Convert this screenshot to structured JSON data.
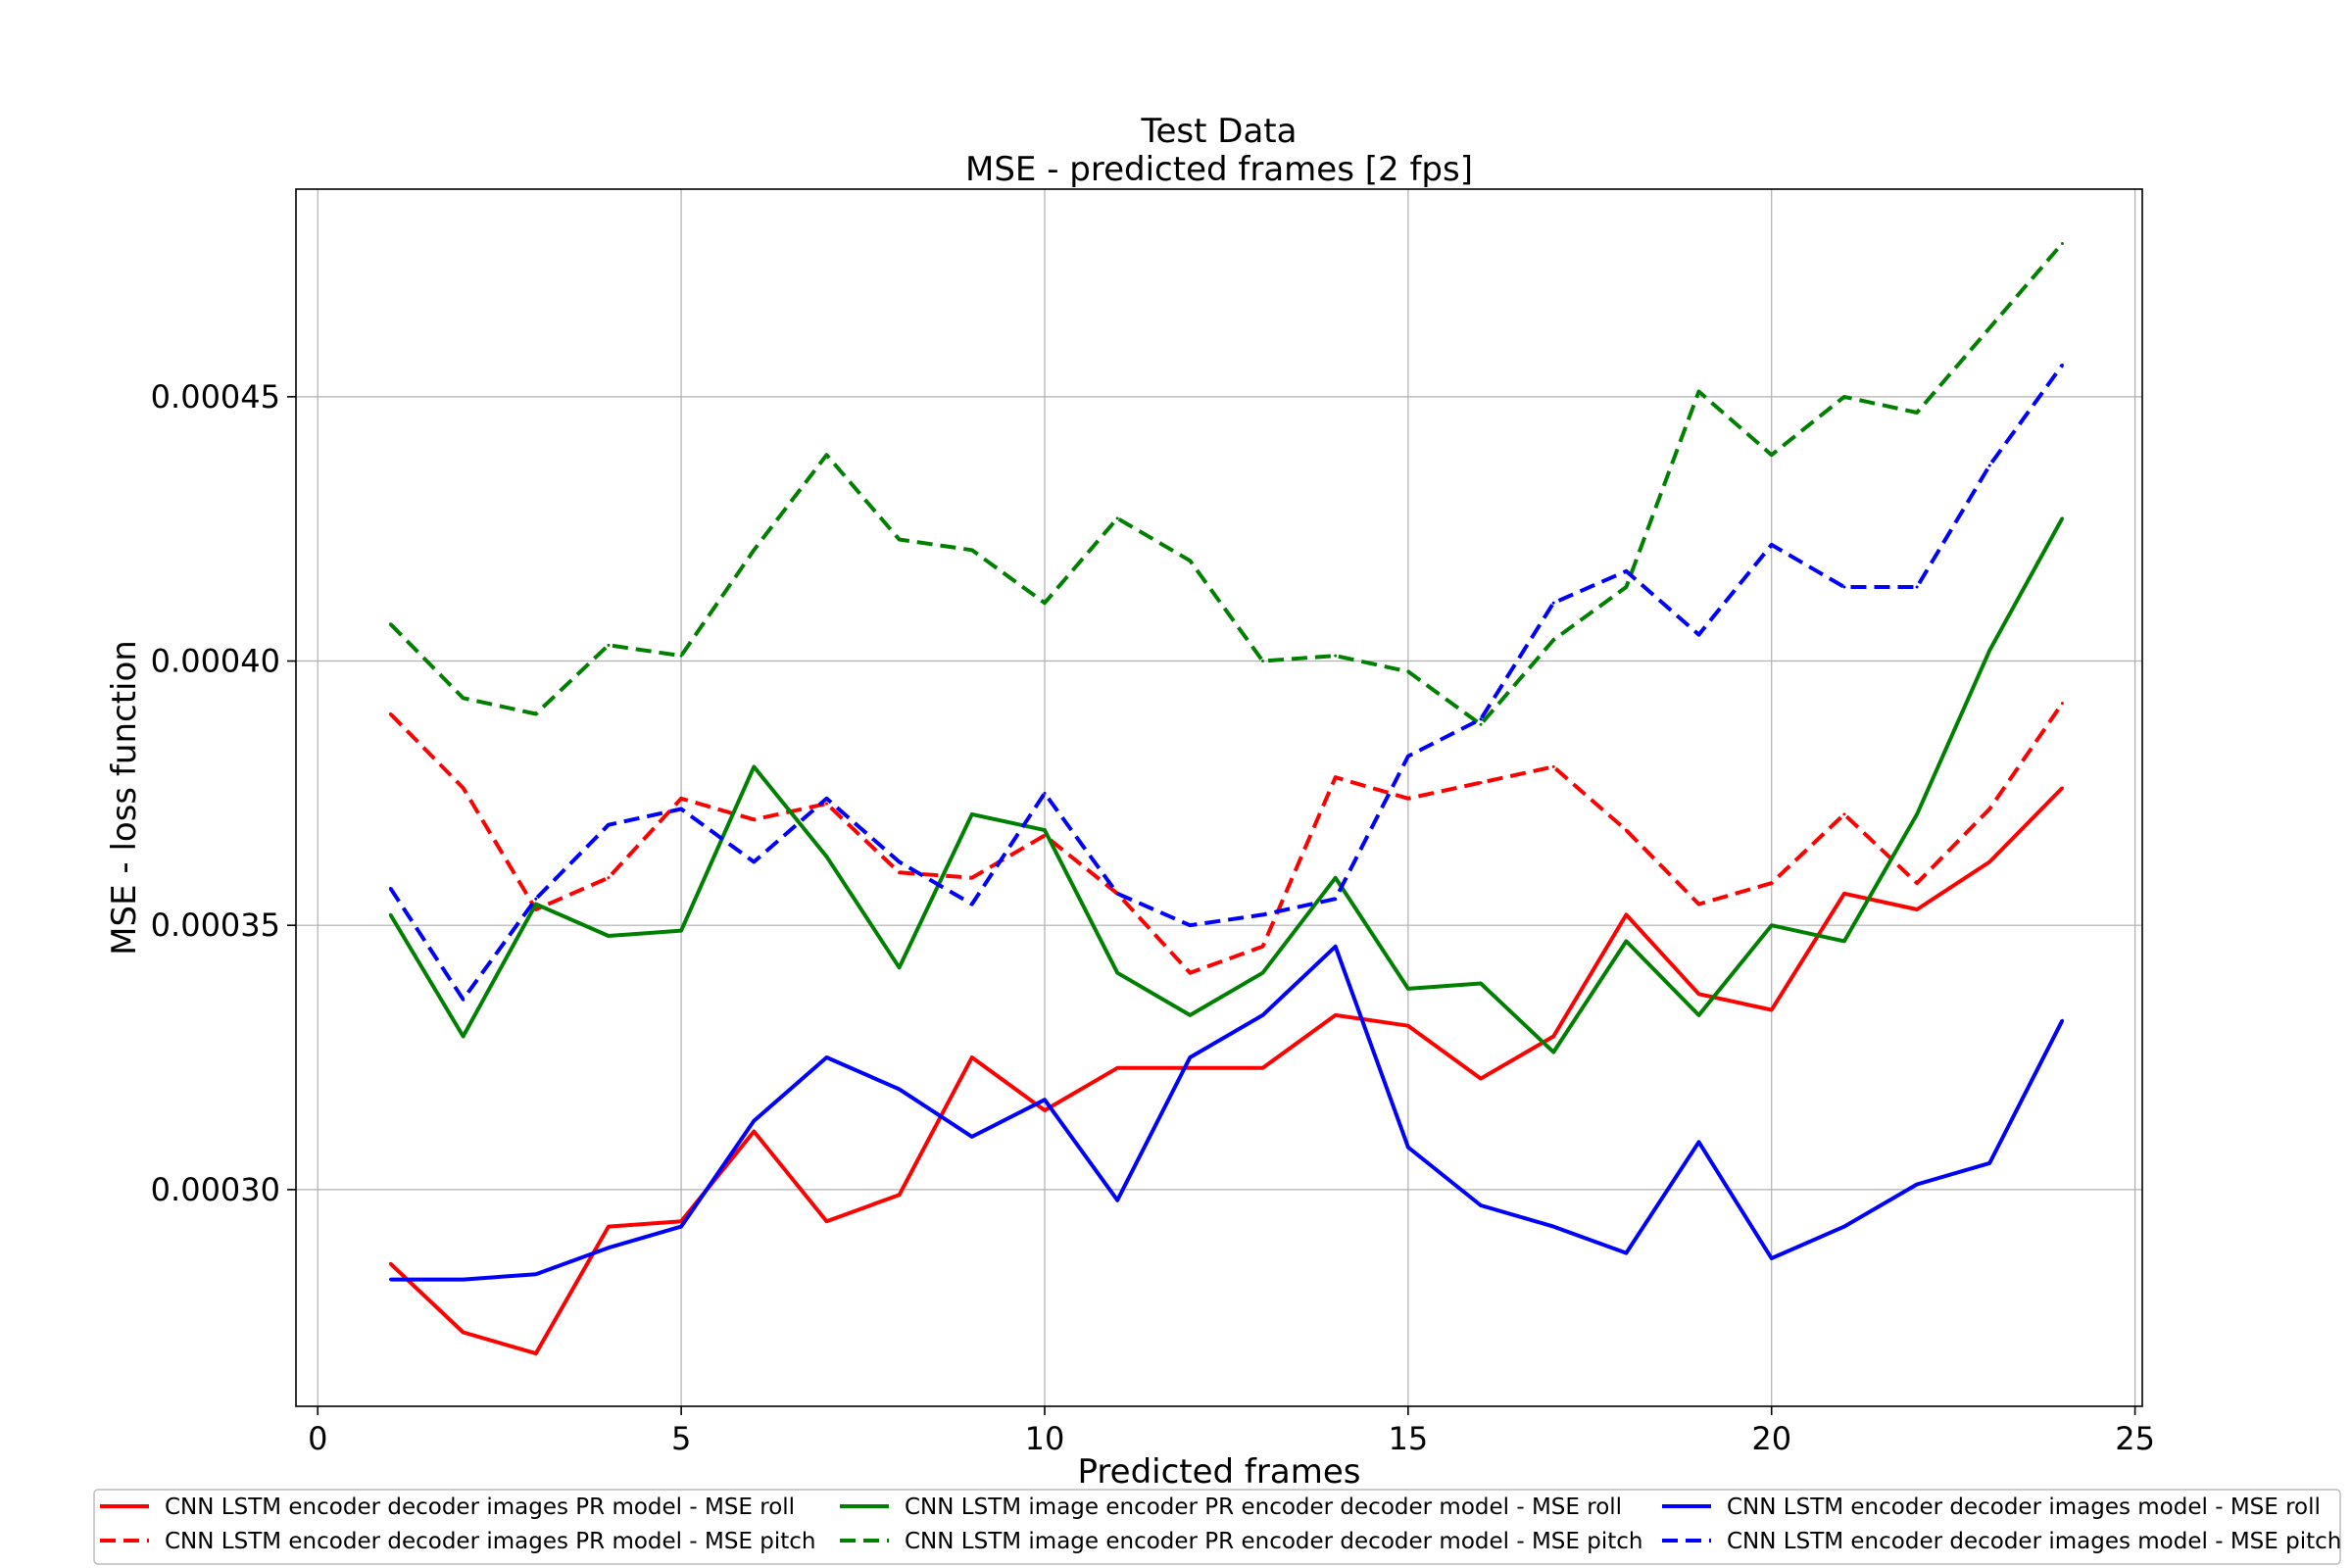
{
  "chart_data": {
    "type": "line",
    "title_lines": [
      "Test Data",
      "MSE - predicted frames [2 fps]"
    ],
    "xlabel": "Predicted frames",
    "ylabel": "MSE - loss function",
    "xlim": [
      -0.3,
      25.1
    ],
    "ylim": [
      0.000259,
      0.00048928
    ],
    "xticks": [
      0,
      5,
      10,
      15,
      20,
      25
    ],
    "xtick_labels": [
      "0",
      "5",
      "10",
      "15",
      "20",
      "25"
    ],
    "yticks": [
      0.0003,
      0.00035,
      0.0004,
      0.00045
    ],
    "ytick_labels": [
      "0.00030",
      "0.00035",
      "0.00040",
      "0.00045"
    ],
    "grid": true,
    "legend_position": "bottom-outside",
    "legend_columns": 3,
    "x": [
      1,
      2,
      3,
      4,
      5,
      6,
      7,
      8,
      9,
      10,
      11,
      12,
      13,
      14,
      15,
      16,
      17,
      18,
      19,
      20,
      21,
      22,
      23,
      24
    ],
    "series": [
      {
        "name": "CNN LSTM encoder decoder images PR model - MSE roll",
        "color": "#ff0000",
        "dash": "solid",
        "values": [
          0.000286,
          0.000273,
          0.000269,
          0.000293,
          0.000294,
          0.000311,
          0.000294,
          0.000299,
          0.000325,
          0.000315,
          0.000323,
          0.000323,
          0.000323,
          0.000333,
          0.000331,
          0.000321,
          0.000329,
          0.000352,
          0.000337,
          0.000334,
          0.000356,
          0.000353,
          0.000362,
          0.000376
        ]
      },
      {
        "name": "CNN LSTM encoder decoder images PR model - MSE pitch",
        "color": "#ff0000",
        "dash": "dashed",
        "values": [
          0.00039,
          0.000376,
          0.000353,
          0.000359,
          0.000374,
          0.00037,
          0.000373,
          0.00036,
          0.000359,
          0.000367,
          0.000356,
          0.000341,
          0.000346,
          0.000378,
          0.000374,
          0.000377,
          0.00038,
          0.000368,
          0.000354,
          0.000358,
          0.000371,
          0.000358,
          0.000372,
          0.000392
        ]
      },
      {
        "name": "CNN LSTM image encoder PR encoder decoder model - MSE roll",
        "color": "#008000",
        "dash": "solid",
        "values": [
          0.000352,
          0.000329,
          0.000354,
          0.000348,
          0.000349,
          0.00038,
          0.000363,
          0.000342,
          0.000371,
          0.000368,
          0.000341,
          0.000333,
          0.000341,
          0.000359,
          0.000338,
          0.000339,
          0.000326,
          0.000347,
          0.000333,
          0.00035,
          0.000347,
          0.000371,
          0.000402,
          0.000427
        ]
      },
      {
        "name": "CNN LSTM image encoder PR encoder decoder model - MSE pitch",
        "color": "#008000",
        "dash": "dashed",
        "values": [
          0.000407,
          0.000393,
          0.00039,
          0.000403,
          0.000401,
          0.000421,
          0.000439,
          0.000423,
          0.000421,
          0.000411,
          0.000427,
          0.000419,
          0.0004,
          0.000401,
          0.000398,
          0.000388,
          0.000404,
          0.000414,
          0.000451,
          0.000439,
          0.00045,
          0.000447,
          0.000463,
          0.000479
        ]
      },
      {
        "name": "CNN LSTM encoder decoder images model - MSE roll",
        "color": "#0000ff",
        "dash": "solid",
        "values": [
          0.000283,
          0.000283,
          0.000284,
          0.000289,
          0.000293,
          0.000313,
          0.000325,
          0.000319,
          0.00031,
          0.000317,
          0.000298,
          0.000325,
          0.000333,
          0.000346,
          0.000308,
          0.000297,
          0.000293,
          0.000288,
          0.000309,
          0.000287,
          0.000293,
          0.000301,
          0.000305,
          0.000332
        ]
      },
      {
        "name": "CNN LSTM encoder decoder images model - MSE pitch",
        "color": "#0000ff",
        "dash": "dashed",
        "values": [
          0.000357,
          0.000336,
          0.000355,
          0.000369,
          0.000372,
          0.000362,
          0.000374,
          0.000362,
          0.000354,
          0.000375,
          0.000356,
          0.00035,
          0.000352,
          0.000355,
          0.000382,
          0.000389,
          0.000411,
          0.000417,
          0.000405,
          0.000422,
          0.000414,
          0.000414,
          0.000437,
          0.000456
        ]
      }
    ]
  }
}
